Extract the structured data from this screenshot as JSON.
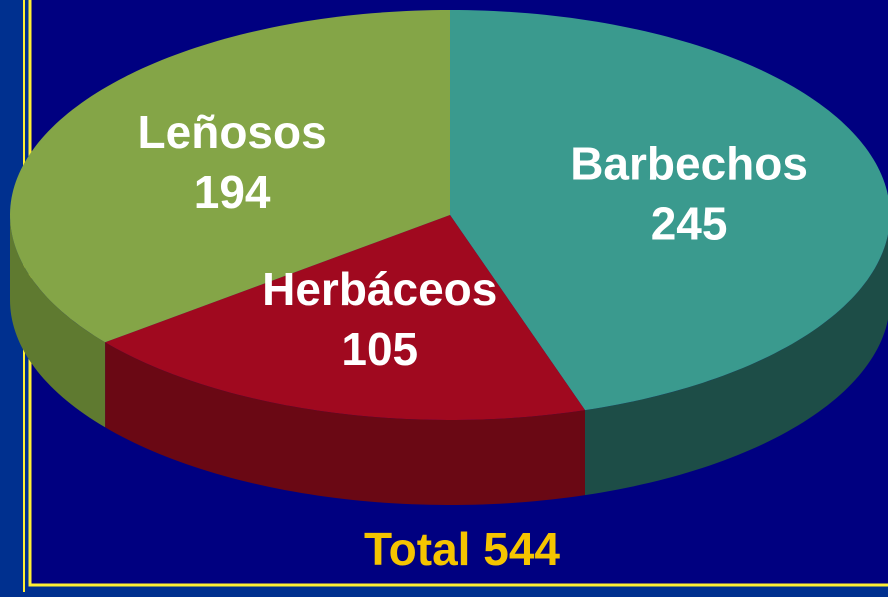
{
  "chart_data": {
    "type": "pie",
    "categories": [
      "Barbechos",
      "Herbáceos",
      "Leñosos"
    ],
    "values": [
      245,
      105,
      194
    ],
    "colors": [
      "#3a9a8e",
      "#a0091f",
      "#84a547"
    ],
    "side_colors": [
      "#1d4d47",
      "#6a0814",
      "#5f7a30"
    ],
    "total": "Total 544"
  }
}
